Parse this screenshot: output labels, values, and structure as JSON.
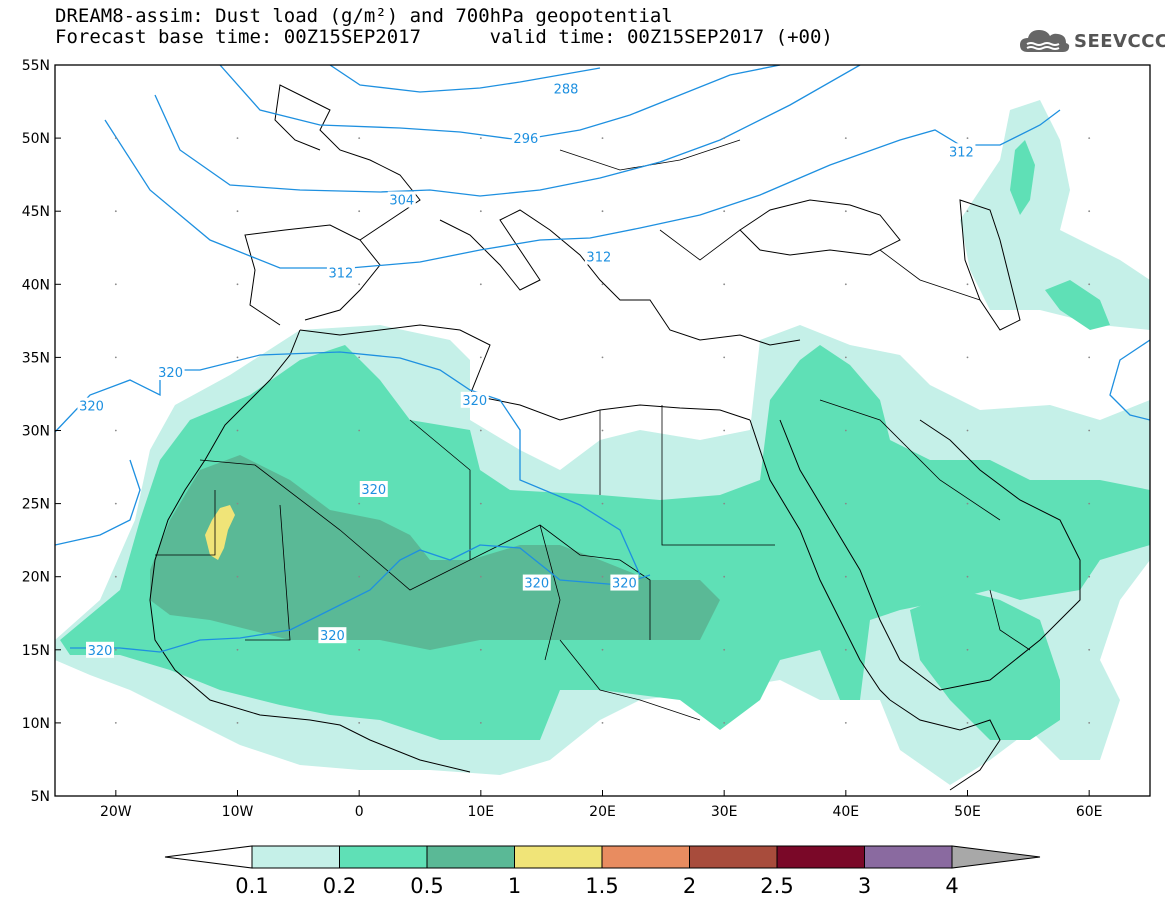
{
  "header": {
    "title_line1": "DREAM8-assim: Dust load (g/m²) and 700hPa geopotential",
    "title_line2": "Forecast base time: 00Z15SEP2017      valid time: 00Z15SEP2017 (+00)",
    "logo_text": "SEEVCCC"
  },
  "map": {
    "lon_range": [
      -25,
      65
    ],
    "lat_range": [
      5,
      55
    ],
    "lat_ticks": [
      "5N",
      "10N",
      "15N",
      "20N",
      "25N",
      "30N",
      "35N",
      "40N",
      "45N",
      "50N",
      "55N"
    ],
    "lat_values": [
      5,
      10,
      15,
      20,
      25,
      30,
      35,
      40,
      45,
      50,
      55
    ],
    "lon_ticks": [
      "20W",
      "10W",
      "0",
      "10E",
      "20E",
      "30E",
      "40E",
      "50E",
      "60E"
    ],
    "lon_values": [
      -20,
      -10,
      0,
      10,
      20,
      30,
      40,
      50,
      60
    ],
    "contour_color": "#1e90e0",
    "contour_labels": [
      {
        "text": "288",
        "lon": 17.0,
        "lat": 53.4
      },
      {
        "text": "296",
        "lon": 13.7,
        "lat": 50.0
      },
      {
        "text": "304",
        "lon": 3.5,
        "lat": 45.8
      },
      {
        "text": "312",
        "lon": 19.7,
        "lat": 41.9
      },
      {
        "text": "312",
        "lon": -1.5,
        "lat": 40.8
      },
      {
        "text": "312",
        "lon": 49.5,
        "lat": 49.1
      },
      {
        "text": "320",
        "lon": -15.5,
        "lat": 34.0
      },
      {
        "text": "320",
        "lon": -22.0,
        "lat": 31.7
      },
      {
        "text": "320",
        "lon": 9.5,
        "lat": 32.1
      },
      {
        "text": "320",
        "lon": 1.2,
        "lat": 26.0
      },
      {
        "text": "320",
        "lon": 14.6,
        "lat": 19.6
      },
      {
        "text": "320",
        "lon": 21.8,
        "lat": 19.6
      },
      {
        "text": "320",
        "lon": -2.2,
        "lat": 16.0
      },
      {
        "text": "320",
        "lon": -21.3,
        "lat": 15.0
      }
    ]
  },
  "colorbar": {
    "labels": [
      "0.1",
      "0.2",
      "0.5",
      "1",
      "1.5",
      "2",
      "2.5",
      "3",
      "4"
    ],
    "colors": [
      "#c5f0e8",
      "#5fe0b6",
      "#5ab996",
      "#f0e478",
      "#e88c60",
      "#a84c3c",
      "#7a0828",
      "#8a6aa0"
    ],
    "under_color": "#ffffff",
    "over_color": "#a8a8a8"
  },
  "dust_levels": {
    "l1": "#c5f0e8",
    "l2": "#5fe0b6",
    "l3": "#5ab996",
    "l4": "#f0e478"
  }
}
